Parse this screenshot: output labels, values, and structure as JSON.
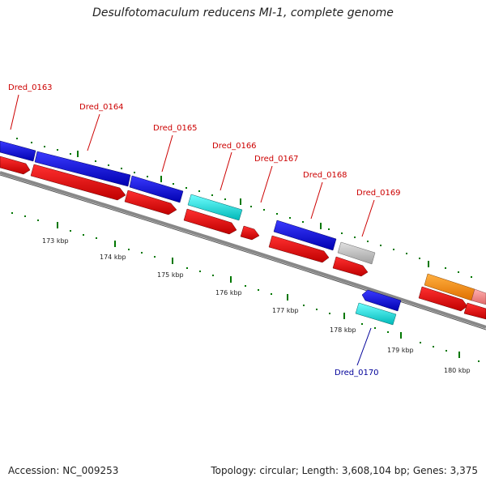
{
  "title": "Desulfotomaculum reducens MI-1, complete genome",
  "footer": {
    "accession": "Accession: NC_009253",
    "summary": "Topology: circular; Length: 3,608,104 bp; Genes: 3,375"
  },
  "colors": {
    "forward_label": "#cc0000",
    "reverse_label": "#000099",
    "leader_line_forward": "#cc0000",
    "leader_line_reverse": "#000099",
    "blue_feature": "#0000dd",
    "red_feature": "#ee0000",
    "cyan_feature": "#00e5e5",
    "gray_feature": "#c0c0c0",
    "orange_feature": "#ff8c00",
    "pink_feature": "#f08080",
    "backbone": "#888888",
    "tick": "#007700"
  },
  "gene_labels": [
    {
      "id": "g163",
      "name": "Dred_0163",
      "strand": "forward"
    },
    {
      "id": "g164",
      "name": "Dred_0164",
      "strand": "forward"
    },
    {
      "id": "g165",
      "name": "Dred_0165",
      "strand": "forward"
    },
    {
      "id": "g166",
      "name": "Dred_0166",
      "strand": "forward"
    },
    {
      "id": "g167",
      "name": "Dred_0167",
      "strand": "forward"
    },
    {
      "id": "g168",
      "name": "Dred_0168",
      "strand": "forward"
    },
    {
      "id": "g169",
      "name": "Dred_0169",
      "strand": "forward"
    },
    {
      "id": "g170",
      "name": "Dred_0170",
      "strand": "reverse"
    }
  ],
  "kbp_ticks": [
    "173 kbp",
    "174 kbp",
    "175 kbp",
    "176 kbp",
    "177 kbp",
    "178 kbp",
    "179 kbp",
    "180 kbp"
  ]
}
